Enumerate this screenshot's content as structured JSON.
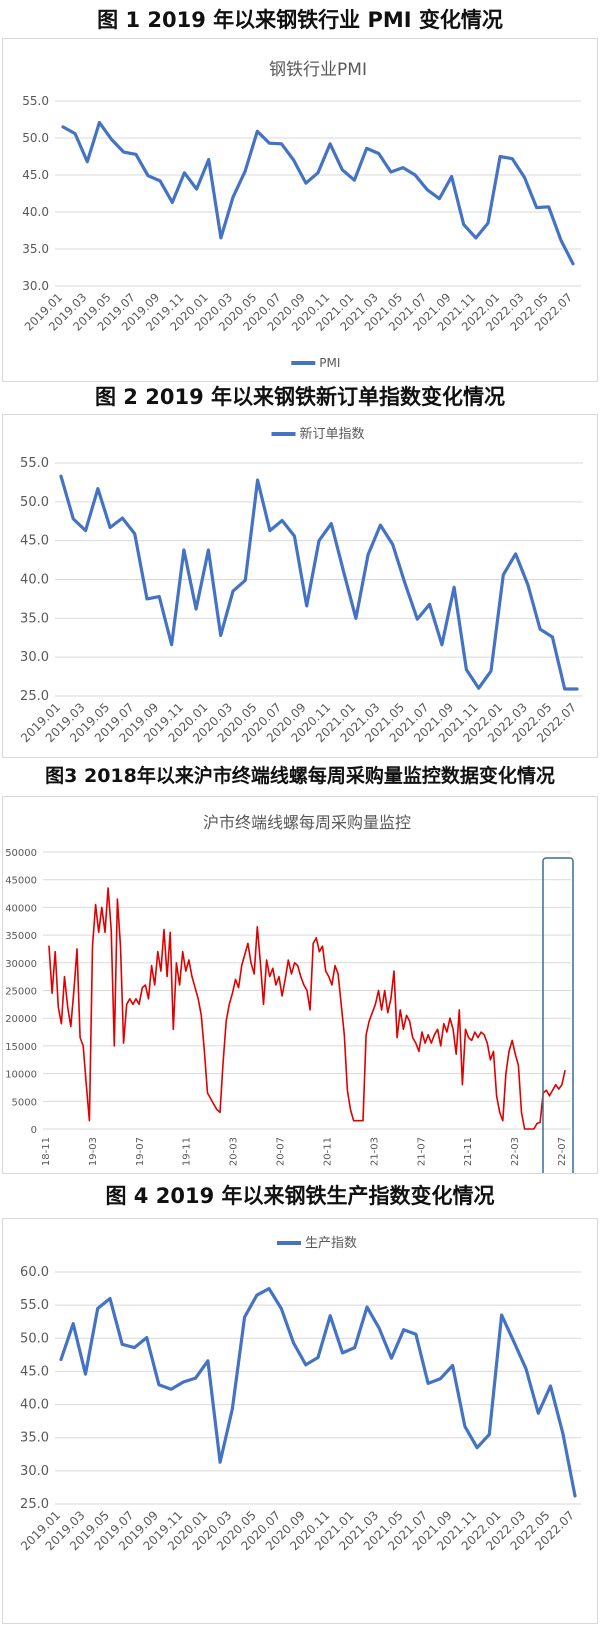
{
  "figures": [
    {
      "title": "图 1 2019 年以来钢铁行业 PMI 变化情况"
    },
    {
      "title": "图 2 2019 年以来钢铁新订单指数变化情况"
    },
    {
      "title": "图3 2018年以来沪市终端线螺每周采购量监控数据变化情况"
    },
    {
      "title": "图 4 2019 年以来钢铁生产指数变化情况"
    }
  ],
  "colors": {
    "blue": "#4472c4",
    "red": "#e00000",
    "grid": "#d9d9d9",
    "highlight": "#3b6f8f"
  },
  "chart_data": [
    {
      "type": "line",
      "title": "钢铁行业PMI",
      "categories_ticks": [
        "2019.01",
        "2019.03",
        "2019.05",
        "2019.07",
        "2019.09",
        "2019.11",
        "2020.01",
        "2020.03",
        "2020.05",
        "2020.07",
        "2020.09",
        "2020.11",
        "2021.01",
        "2021.03",
        "2021.05",
        "2021.07",
        "2021.09",
        "2021.11",
        "2022.01",
        "2022.03",
        "2022.05",
        "2022.07"
      ],
      "y_ticks": [
        "30.0",
        "35.0",
        "40.0",
        "45.0",
        "50.0",
        "55.0"
      ],
      "ylim": [
        30,
        55
      ],
      "grid": true,
      "legend_position": "bottom",
      "series": [
        {
          "name": "PMI",
          "values": [
            51.5,
            50.6,
            46.8,
            52.1,
            49.8,
            48.1,
            47.8,
            44.9,
            44.2,
            41.3,
            45.3,
            43.1,
            47.1,
            36.5,
            42.0,
            45.5,
            50.9,
            49.3,
            49.2,
            47.0,
            43.9,
            45.3,
            49.2,
            45.7,
            44.3,
            48.6,
            47.9,
            45.4,
            46.0,
            45.0,
            43.0,
            41.8,
            44.8,
            38.3,
            36.5,
            38.5,
            47.5,
            47.2,
            44.7,
            40.6,
            40.7,
            36.2,
            33.0
          ]
        }
      ]
    },
    {
      "type": "line",
      "title": "",
      "categories_ticks": [
        "2019.01",
        "2019.03",
        "2019.05",
        "2019.07",
        "2019.09",
        "2019.11",
        "2020.01",
        "2020.03",
        "2020.05",
        "2020.07",
        "2020.09",
        "2020.11",
        "2021.01",
        "2021.03",
        "2021.05",
        "2021.07",
        "2021.09",
        "2021.11",
        "2022.01",
        "2022.03",
        "2022.05",
        "2022.07"
      ],
      "y_ticks": [
        "25.0",
        "30.0",
        "35.0",
        "40.0",
        "45.0",
        "50.0",
        "55.0"
      ],
      "ylim": [
        25,
        55
      ],
      "grid": true,
      "legend_position": "top",
      "series": [
        {
          "name": "新订单指数",
          "values": [
            53.3,
            47.8,
            46.3,
            51.7,
            46.7,
            47.9,
            45.9,
            37.5,
            37.8,
            31.6,
            43.8,
            36.2,
            43.8,
            32.8,
            38.5,
            39.9,
            52.8,
            46.3,
            47.6,
            45.6,
            36.6,
            45.0,
            47.2,
            41.0,
            35.0,
            43.2,
            47.0,
            44.5,
            39.5,
            34.9,
            36.8,
            31.6,
            39.0,
            28.4,
            26.0,
            28.2,
            40.6,
            43.3,
            39.3,
            33.6,
            32.6,
            25.9,
            25.9
          ]
        }
      ]
    },
    {
      "type": "line",
      "title": "沪市终端线螺每周采购量监控",
      "categories_ticks": [
        "18-11",
        "19-03",
        "19-07",
        "19-11",
        "20-03",
        "20-07",
        "20-11",
        "21-03",
        "21-07",
        "21-11",
        "22-03",
        "22-07"
      ],
      "y_ticks": [
        "0",
        "5000",
        "10000",
        "15000",
        "20000",
        "25000",
        "30000",
        "35000",
        "40000",
        "45000",
        "50000"
      ],
      "ylim": [
        0,
        50000
      ],
      "grid": true,
      "legend_position": "none",
      "highlight_label": "22-07",
      "series": [
        {
          "name": "",
          "values": [
            33000,
            24500,
            32000,
            22000,
            19000,
            27500,
            22000,
            18500,
            25000,
            32500,
            16500,
            15000,
            8000,
            1500,
            33000,
            40500,
            35500,
            40000,
            35500,
            43500,
            36000,
            15000,
            41500,
            33000,
            15500,
            22500,
            23500,
            22500,
            23500,
            22500,
            25500,
            26000,
            23500,
            29500,
            26000,
            32000,
            28500,
            36000,
            27500,
            35500,
            18000,
            30000,
            26000,
            32000,
            28500,
            30500,
            27500,
            25500,
            23500,
            20500,
            14000,
            6500,
            5500,
            4500,
            3500,
            3000,
            12000,
            19500,
            22500,
            24500,
            27000,
            25500,
            29500,
            31500,
            33500,
            30000,
            28000,
            36500,
            30000,
            22500,
            30500,
            27500,
            29000,
            26000,
            27500,
            24000,
            27000,
            30500,
            28000,
            30000,
            29500,
            27500,
            26000,
            25000,
            21500,
            33500,
            34500,
            32000,
            33000,
            28500,
            27500,
            26000,
            29500,
            28000,
            22500,
            17000,
            7000,
            3500,
            1500,
            1500,
            1500,
            1500,
            17000,
            19500,
            21000,
            22500,
            25000,
            21500,
            25000,
            21000,
            23500,
            28500,
            16500,
            21500,
            18000,
            20500,
            19500,
            16500,
            15500,
            14000,
            17500,
            15500,
            17000,
            15500,
            17000,
            18000,
            15000,
            19000,
            17500,
            20000,
            18000,
            13500,
            21500,
            8000,
            18000,
            16500,
            16000,
            17500,
            16500,
            17500,
            17000,
            15500,
            12500,
            14000,
            6000,
            3000,
            1500,
            10000,
            14000,
            16000,
            13500,
            11500,
            3000,
            0,
            0,
            0,
            0,
            1000,
            1200,
            6500,
            7000,
            6000,
            7000,
            8000,
            7200,
            8000,
            10500
          ]
        }
      ]
    },
    {
      "type": "line",
      "title": "",
      "categories_ticks": [
        "2019.01",
        "2019.03",
        "2019.05",
        "2019.07",
        "2019.09",
        "2019.11",
        "2020.01",
        "2020.03",
        "2020.05",
        "2020.07",
        "2020.09",
        "2020.11",
        "2021.01",
        "2021.03",
        "2021.05",
        "2021.07",
        "2021.09",
        "2021.11",
        "2022.01",
        "2022.03",
        "2022.05",
        "2022.07"
      ],
      "y_ticks": [
        "25.0",
        "30.0",
        "35.0",
        "40.0",
        "45.0",
        "50.0",
        "55.0",
        "60.0"
      ],
      "ylim": [
        25,
        60
      ],
      "grid": true,
      "legend_position": "top",
      "series": [
        {
          "name": "生产指数",
          "values": [
            46.8,
            52.2,
            44.6,
            54.5,
            56.0,
            49.1,
            48.6,
            50.1,
            43.0,
            42.3,
            43.4,
            44.0,
            46.6,
            31.3,
            39.3,
            53.2,
            56.5,
            57.5,
            54.5,
            49.3,
            46.0,
            47.1,
            53.4,
            47.8,
            48.6,
            54.7,
            51.5,
            47.0,
            51.3,
            50.6,
            43.2,
            43.9,
            45.9,
            36.7,
            33.5,
            35.5,
            53.5,
            49.5,
            45.4,
            38.7,
            42.8,
            35.7,
            26.2
          ]
        }
      ]
    }
  ]
}
